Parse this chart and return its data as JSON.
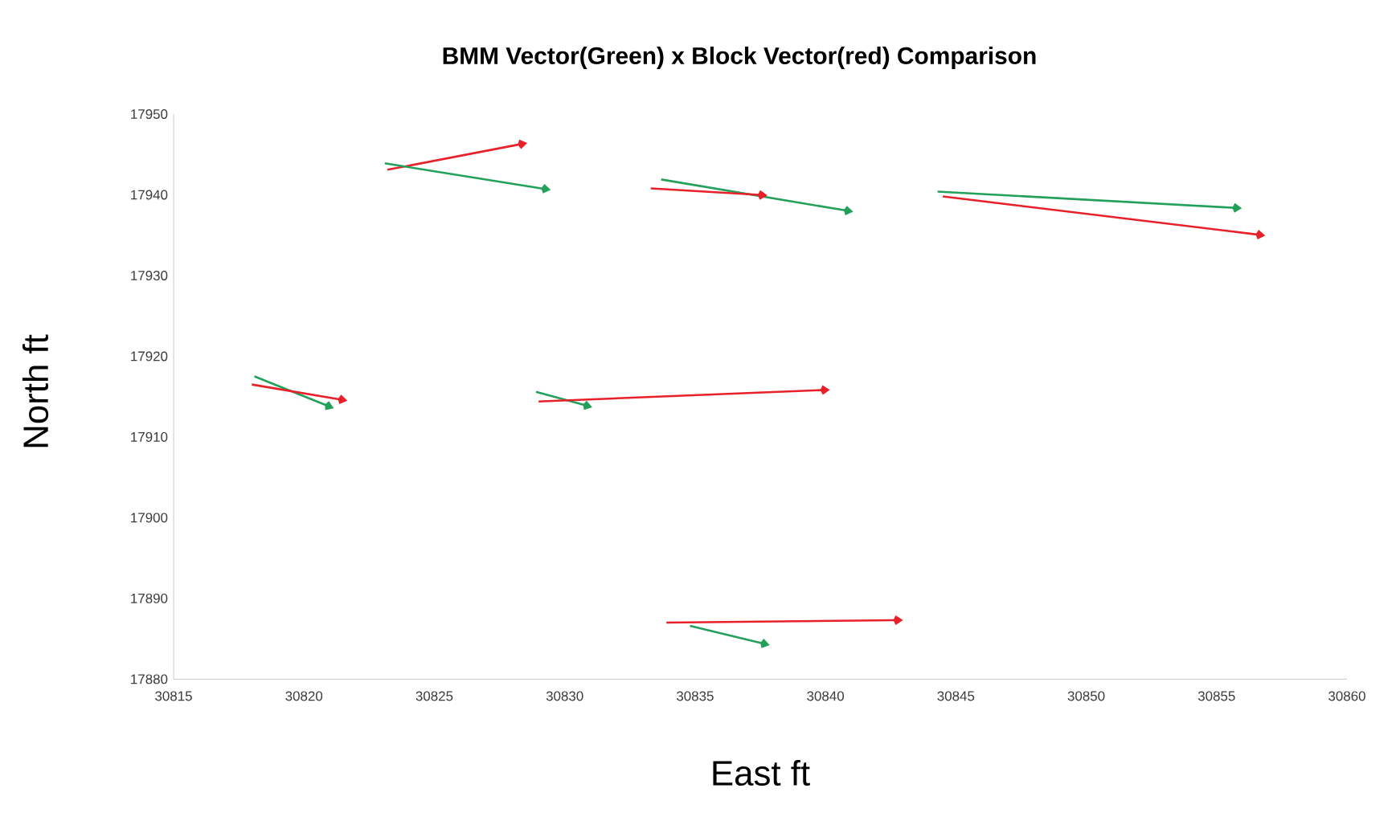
{
  "chart_data": {
    "type": "line",
    "title": "BMM Vector(Green) x Block Vector(red) Comparison",
    "xlabel": "East ft",
    "ylabel": "North ft",
    "xlim": [
      30815,
      30860
    ],
    "xticks": [
      30815,
      30820,
      30825,
      30830,
      30835,
      30840,
      30845,
      30850,
      30855,
      30860
    ],
    "ylim": [
      17880,
      17950
    ],
    "yticks": [
      17880,
      17890,
      17900,
      17910,
      17920,
      17930,
      17940,
      17950
    ],
    "grid": false,
    "legend": false,
    "marker": "diamond",
    "line_style": "solid",
    "series": [
      {
        "color": "#e8202a",
        "x": [
          30823.2,
          30828.2
        ],
        "values": [
          17943.1,
          17946.2
        ]
      },
      {
        "color": "#23a05a",
        "x": [
          30823.1,
          30829.1
        ],
        "values": [
          17943.9,
          17940.8
        ]
      },
      {
        "color": "#23a05a",
        "x": [
          30833.7,
          30840.7
        ],
        "values": [
          17941.9,
          17938.1
        ]
      },
      {
        "color": "#e8202a",
        "x": [
          30833.3,
          30837.4
        ],
        "values": [
          17940.8,
          17940.0
        ]
      },
      {
        "color": "#23a05a",
        "x": [
          30844.3,
          30855.6
        ],
        "values": [
          17940.4,
          17938.4
        ]
      },
      {
        "color": "#e8202a",
        "x": [
          30844.5,
          30856.5
        ],
        "values": [
          17939.8,
          17935.1
        ]
      },
      {
        "color": "#23a05a",
        "x": [
          30818.1,
          30820.8
        ],
        "values": [
          17917.5,
          17914.0
        ]
      },
      {
        "color": "#e8202a",
        "x": [
          30818.0,
          30821.3
        ],
        "values": [
          17916.5,
          17914.7
        ]
      },
      {
        "color": "#23a05a",
        "x": [
          30828.9,
          30830.7
        ],
        "values": [
          17915.6,
          17914.0
        ]
      },
      {
        "color": "#e8202a",
        "x": [
          30829.0,
          30839.8
        ],
        "values": [
          17914.4,
          17915.8
        ]
      },
      {
        "color": "#e8202a",
        "x": [
          30833.9,
          30842.6
        ],
        "values": [
          17887.0,
          17887.3
        ]
      },
      {
        "color": "#23a05a",
        "x": [
          30834.8,
          30837.5
        ],
        "values": [
          17886.6,
          17884.5
        ]
      }
    ]
  }
}
